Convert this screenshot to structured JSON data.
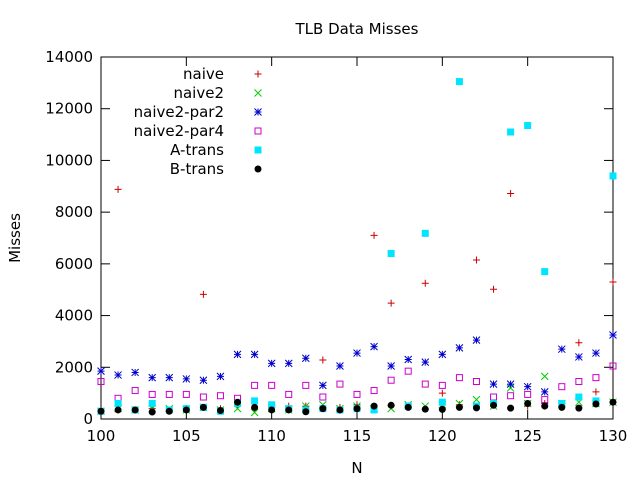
{
  "chart_data": {
    "type": "scatter",
    "title": "TLB Data Misses",
    "xlabel": "N",
    "ylabel": "Misses",
    "xlim": [
      100,
      130
    ],
    "ylim": [
      0,
      14000
    ],
    "xticks": [
      100,
      105,
      110,
      115,
      120,
      125,
      130
    ],
    "yticks": [
      0,
      2000,
      4000,
      6000,
      8000,
      10000,
      12000,
      14000
    ],
    "grid": false,
    "legend_position": "top-left",
    "series": [
      {
        "name": "naive",
        "marker": "plus",
        "color": "#cc0000",
        "points": [
          [
            100,
            300
          ],
          [
            101,
            8880
          ],
          [
            102,
            350
          ],
          [
            103,
            400
          ],
          [
            104,
            350
          ],
          [
            105,
            400
          ],
          [
            106,
            4820
          ],
          [
            107,
            400
          ],
          [
            108,
            500
          ],
          [
            109,
            400
          ],
          [
            110,
            450
          ],
          [
            111,
            500
          ],
          [
            112,
            500
          ],
          [
            113,
            2280
          ],
          [
            114,
            450
          ],
          [
            115,
            550
          ],
          [
            116,
            7100
          ],
          [
            117,
            4480
          ],
          [
            118,
            500
          ],
          [
            119,
            5250
          ],
          [
            120,
            1000
          ],
          [
            121,
            550
          ],
          [
            122,
            6150
          ],
          [
            123,
            5020
          ],
          [
            124,
            8720
          ],
          [
            125,
            500
          ],
          [
            126,
            600
          ],
          [
            127,
            600
          ],
          [
            128,
            2950
          ],
          [
            129,
            1050
          ],
          [
            130,
            5300
          ]
        ]
      },
      {
        "name": "naive2",
        "marker": "cross",
        "color": "#00cc00",
        "points": [
          [
            100,
            300
          ],
          [
            101,
            400
          ],
          [
            102,
            350
          ],
          [
            103,
            400
          ],
          [
            104,
            400
          ],
          [
            105,
            350
          ],
          [
            106,
            450
          ],
          [
            107,
            350
          ],
          [
            108,
            400
          ],
          [
            109,
            250
          ],
          [
            110,
            400
          ],
          [
            111,
            350
          ],
          [
            112,
            500
          ],
          [
            113,
            550
          ],
          [
            114,
            400
          ],
          [
            115,
            500
          ],
          [
            116,
            400
          ],
          [
            117,
            400
          ],
          [
            118,
            550
          ],
          [
            119,
            500
          ],
          [
            120,
            550
          ],
          [
            121,
            600
          ],
          [
            122,
            750
          ],
          [
            123,
            500
          ],
          [
            124,
            1200
          ],
          [
            125,
            600
          ],
          [
            126,
            1650
          ],
          [
            127,
            600
          ],
          [
            128,
            650
          ],
          [
            129,
            600
          ],
          [
            130,
            650
          ]
        ]
      },
      {
        "name": "naive2-par2",
        "marker": "star",
        "color": "#0000cc",
        "points": [
          [
            100,
            1850
          ],
          [
            101,
            1700
          ],
          [
            102,
            1800
          ],
          [
            103,
            1600
          ],
          [
            104,
            1600
          ],
          [
            105,
            1550
          ],
          [
            106,
            1500
          ],
          [
            107,
            1650
          ],
          [
            108,
            2500
          ],
          [
            109,
            2500
          ],
          [
            110,
            2150
          ],
          [
            111,
            2150
          ],
          [
            112,
            2350
          ],
          [
            113,
            1300
          ],
          [
            114,
            2050
          ],
          [
            115,
            2550
          ],
          [
            116,
            2800
          ],
          [
            117,
            2050
          ],
          [
            118,
            2300
          ],
          [
            119,
            2200
          ],
          [
            120,
            2500
          ],
          [
            121,
            2750
          ],
          [
            122,
            3050
          ],
          [
            123,
            1350
          ],
          [
            124,
            1350
          ],
          [
            125,
            1250
          ],
          [
            126,
            1050
          ],
          [
            127,
            2700
          ],
          [
            128,
            2400
          ],
          [
            129,
            2550
          ],
          [
            130,
            3250
          ]
        ]
      },
      {
        "name": "naive2-par4",
        "marker": "open-square",
        "color": "#cc00cc",
        "points": [
          [
            100,
            1450
          ],
          [
            101,
            800
          ],
          [
            102,
            1100
          ],
          [
            103,
            950
          ],
          [
            104,
            950
          ],
          [
            105,
            950
          ],
          [
            106,
            850
          ],
          [
            107,
            900
          ],
          [
            108,
            800
          ],
          [
            109,
            1300
          ],
          [
            110,
            1300
          ],
          [
            111,
            950
          ],
          [
            112,
            1300
          ],
          [
            113,
            850
          ],
          [
            114,
            1350
          ],
          [
            115,
            950
          ],
          [
            116,
            1100
          ],
          [
            117,
            1500
          ],
          [
            118,
            1850
          ],
          [
            119,
            1350
          ],
          [
            120,
            1300
          ],
          [
            121,
            1600
          ],
          [
            122,
            1450
          ],
          [
            123,
            850
          ],
          [
            124,
            900
          ],
          [
            125,
            950
          ],
          [
            126,
            750
          ],
          [
            127,
            1250
          ],
          [
            128,
            1450
          ],
          [
            129,
            1600
          ],
          [
            130,
            2050
          ]
        ]
      },
      {
        "name": "A-trans",
        "marker": "filled-square",
        "color": "#00e5ff",
        "points": [
          [
            100,
            300
          ],
          [
            101,
            600
          ],
          [
            102,
            350
          ],
          [
            103,
            600
          ],
          [
            104,
            350
          ],
          [
            105,
            400
          ],
          [
            106,
            450
          ],
          [
            107,
            300
          ],
          [
            108,
            600
          ],
          [
            109,
            700
          ],
          [
            110,
            550
          ],
          [
            111,
            400
          ],
          [
            112,
            350
          ],
          [
            113,
            400
          ],
          [
            114,
            350
          ],
          [
            115,
            400
          ],
          [
            116,
            350
          ],
          [
            117,
            6400
          ],
          [
            118,
            500
          ],
          [
            119,
            7180
          ],
          [
            120,
            650
          ],
          [
            121,
            13050
          ],
          [
            122,
            500
          ],
          [
            123,
            600
          ],
          [
            124,
            11100
          ],
          [
            125,
            11350
          ],
          [
            126,
            5700
          ],
          [
            127,
            600
          ],
          [
            128,
            850
          ],
          [
            129,
            700
          ],
          [
            130,
            9400
          ]
        ]
      },
      {
        "name": "B-trans",
        "marker": "filled-circle",
        "color": "#000000",
        "points": [
          [
            100,
            300
          ],
          [
            101,
            350
          ],
          [
            102,
            350
          ],
          [
            103,
            270
          ],
          [
            104,
            300
          ],
          [
            105,
            350
          ],
          [
            106,
            450
          ],
          [
            107,
            330
          ],
          [
            108,
            650
          ],
          [
            109,
            450
          ],
          [
            110,
            350
          ],
          [
            111,
            350
          ],
          [
            112,
            280
          ],
          [
            113,
            400
          ],
          [
            114,
            350
          ],
          [
            115,
            400
          ],
          [
            116,
            500
          ],
          [
            117,
            530
          ],
          [
            118,
            450
          ],
          [
            119,
            380
          ],
          [
            120,
            370
          ],
          [
            121,
            450
          ],
          [
            122,
            430
          ],
          [
            123,
            530
          ],
          [
            124,
            420
          ],
          [
            125,
            600
          ],
          [
            126,
            500
          ],
          [
            127,
            450
          ],
          [
            128,
            420
          ],
          [
            129,
            580
          ],
          [
            130,
            650
          ]
        ]
      }
    ]
  }
}
